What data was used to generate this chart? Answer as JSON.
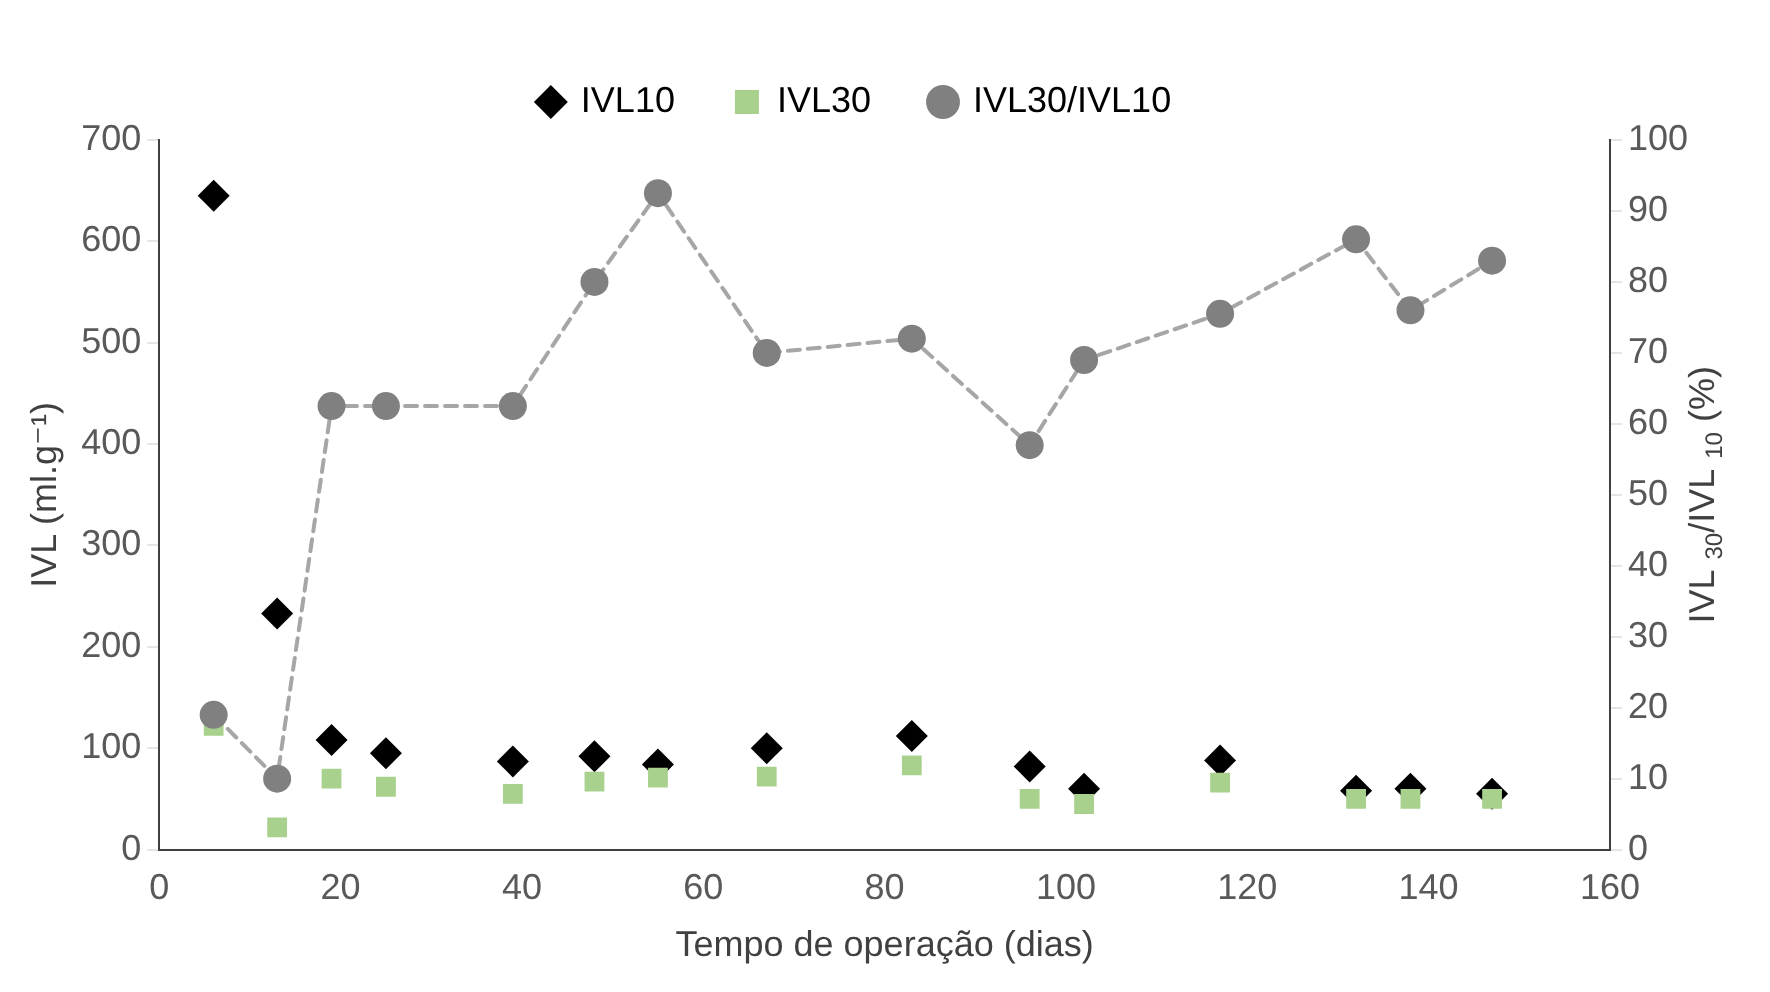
{
  "chart_data": {
    "type": "scatter",
    "xlabel": "Tempo de operação (dias)",
    "ylabel": "IVL (ml.g⁻¹)",
    "y2label": "IVL $_{30}$/IVL $_{10}$ (%)",
    "x": [
      6,
      13,
      19,
      25,
      39,
      48,
      55,
      67,
      83,
      96,
      102,
      117,
      132,
      138,
      147
    ],
    "series": [
      {
        "name": "IVL10",
        "color": "#000000",
        "marker": "diamond",
        "values": [
          645,
          233,
          108,
          95,
          87,
          92,
          84,
          100,
          112,
          82,
          60,
          88,
          58,
          60,
          55
        ]
      },
      {
        "name": "IVL30",
        "color": "#a9d18e",
        "marker": "square",
        "values": [
          122,
          22,
          70,
          62,
          55,
          67,
          71,
          72,
          83,
          50,
          45,
          66,
          50,
          50,
          50
        ]
      },
      {
        "name": "IVL30/IVL10",
        "type": "line",
        "axis": "y2",
        "color": "#808080",
        "marker": "circle",
        "line_style": "dashed",
        "values": [
          19,
          10,
          62.5,
          62.5,
          62.5,
          80,
          92.5,
          70,
          72,
          57,
          69,
          75.5,
          86,
          76,
          83
        ]
      }
    ],
    "xlim": [
      0,
      160
    ],
    "xticks": [
      0,
      20,
      40,
      60,
      80,
      100,
      120,
      140,
      160
    ],
    "ylim": [
      0,
      700
    ],
    "yticks": [
      0,
      100,
      200,
      300,
      400,
      500,
      600,
      700
    ],
    "y2lim": [
      0,
      100
    ],
    "y2ticks": [
      0,
      10,
      20,
      30,
      40,
      50,
      60,
      70,
      80,
      90,
      100
    ],
    "grid": false,
    "legend": "top"
  }
}
